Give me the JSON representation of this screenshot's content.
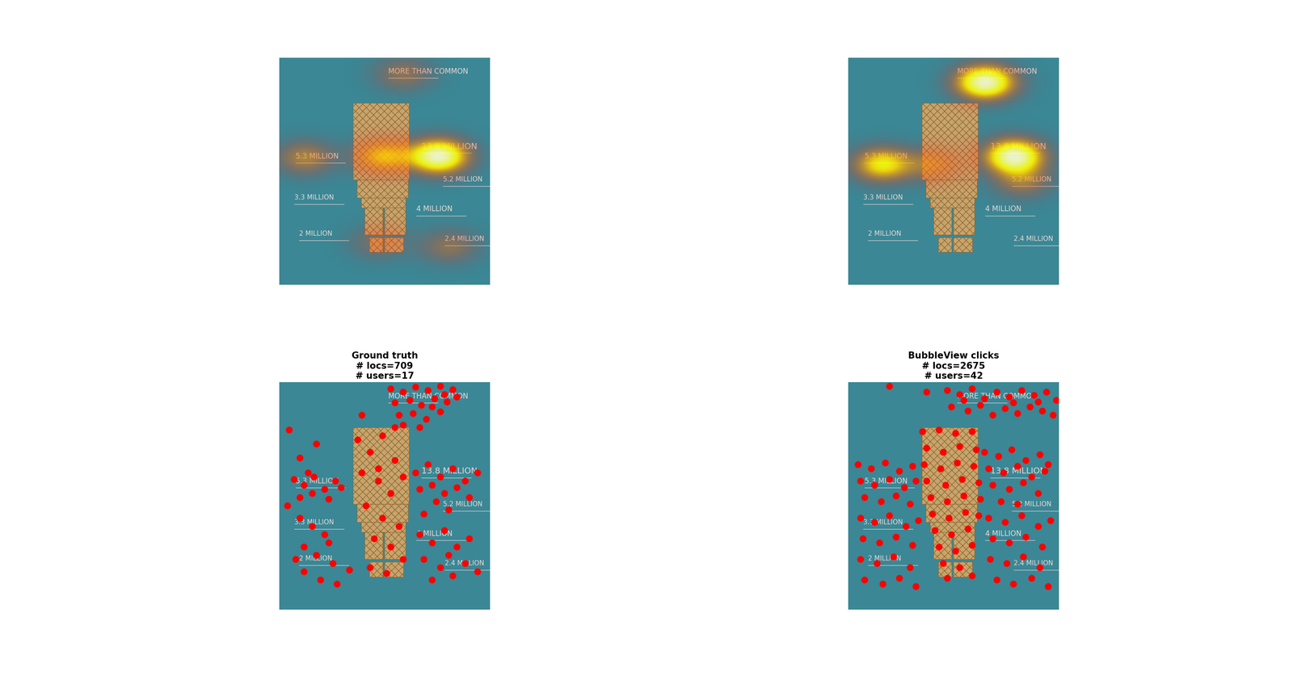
{
  "chart_data": [
    {
      "type": "heatmap",
      "xlim": [
        0,
        255
      ],
      "ylim": [
        276,
        0
      ],
      "hotspots": [
        {
          "x": 193,
          "y": 120,
          "intensity": 1.0
        },
        {
          "x": 126,
          "y": 120,
          "intensity": 0.5
        },
        {
          "x": 31,
          "y": 122,
          "intensity": 0.35
        },
        {
          "x": 150,
          "y": 20,
          "intensity": 0.25
        },
        {
          "x": 206,
          "y": 230,
          "intensity": 0.25
        },
        {
          "x": 121,
          "y": 225,
          "intensity": 0.2
        }
      ]
    },
    {
      "type": "heatmap",
      "xlim": [
        0,
        255
      ],
      "ylim": [
        276,
        0
      ],
      "hotspots": [
        {
          "x": 166,
          "y": 30,
          "intensity": 1.0
        },
        {
          "x": 201,
          "y": 120,
          "intensity": 1.0
        },
        {
          "x": 41,
          "y": 130,
          "intensity": 0.65
        },
        {
          "x": 101,
          "y": 130,
          "intensity": 0.3
        },
        {
          "x": 211,
          "y": 150,
          "intensity": 0.3
        }
      ]
    },
    {
      "type": "scatter",
      "title": [
        "Ground truth",
        "# locs=709",
        "# users=17"
      ],
      "color": "red",
      "xlim": [
        0,
        255
      ],
      "ylim": [
        276,
        0
      ],
      "x": [
        135,
        150,
        165,
        180,
        195,
        210,
        140,
        158,
        172,
        188,
        203,
        145,
        162,
        178,
        195,
        150,
        170,
        200,
        185,
        215,
        12,
        25,
        45,
        10,
        100,
        18,
        30,
        42,
        55,
        68,
        25,
        40,
        60,
        75,
        35,
        95,
        110,
        125,
        140,
        100,
        120,
        135,
        150,
        105,
        125,
        145,
        115,
        135,
        150,
        110,
        130,
        120,
        140,
        165,
        180,
        195,
        210,
        225,
        240,
        170,
        185,
        200,
        215,
        230,
        190,
        175,
        205,
        25,
        40,
        55,
        30,
        45,
        65,
        30,
        50,
        70,
        85,
        20,
        60,
        170,
        185,
        200,
        215,
        230,
        175,
        195,
        210,
        225,
        240,
        185,
        205
      ],
      "y": [
        8,
        12,
        6,
        10,
        5,
        9,
        25,
        22,
        28,
        20,
        24,
        40,
        38,
        45,
        36,
        52,
        55,
        15,
        30,
        18,
        58,
        92,
        75,
        150,
        40,
        118,
        125,
        115,
        130,
        120,
        140,
        135,
        142,
        128,
        110,
        70,
        85,
        65,
        95,
        110,
        120,
        135,
        115,
        150,
        165,
        175,
        190,
        200,
        215,
        225,
        232,
        105,
        55,
        110,
        100,
        115,
        105,
        120,
        110,
        130,
        125,
        135,
        128,
        140,
        145,
        160,
        155,
        165,
        175,
        185,
        200,
        210,
        220,
        230,
        240,
        245,
        228,
        215,
        195,
        185,
        195,
        180,
        200,
        190,
        215,
        225,
        235,
        220,
        230,
        240,
        210
      ]
    },
    {
      "type": "scatter",
      "title": [
        "BubbleView clicks",
        "# locs=2675",
        "# users=42"
      ],
      "color": "red",
      "xlim": [
        0,
        255
      ],
      "ylim": [
        276,
        0
      ],
      "x": [
        120,
        135,
        150,
        165,
        180,
        195,
        210,
        225,
        240,
        252,
        125,
        145,
        160,
        175,
        190,
        205,
        220,
        235,
        248,
        140,
        200,
        230,
        50,
        95,
        90,
        110,
        130,
        150,
        95,
        115,
        135,
        155,
        92,
        112,
        132,
        152,
        95,
        118,
        138,
        158,
        100,
        120,
        140,
        160,
        102,
        122,
        142,
        158,
        105,
        125,
        145,
        110,
        130,
        150,
        115,
        135,
        150,
        120,
        12,
        28,
        45,
        62,
        78,
        15,
        32,
        50,
        68,
        82,
        20,
        40,
        58,
        75,
        165,
        182,
        198,
        215,
        232,
        242,
        170,
        188,
        205,
        222,
        238,
        175,
        195,
        212,
        230,
        185,
        205,
        15,
        32,
        50,
        70,
        85,
        18,
        38,
        58,
        78,
        15,
        35,
        55,
        75,
        20,
        42,
        62,
        82,
        170,
        190,
        210,
        230,
        245,
        175,
        195,
        215,
        235,
        172,
        192,
        212,
        232,
        180,
        200,
        222,
        242
      ],
      "y": [
        10,
        15,
        8,
        20,
        12,
        18,
        10,
        16,
        12,
        22,
        30,
        35,
        28,
        40,
        32,
        38,
        30,
        35,
        40,
        22,
        25,
        24,
        5,
        12,
        60,
        58,
        62,
        60,
        80,
        85,
        78,
        82,
        100,
        105,
        98,
        102,
        120,
        125,
        118,
        122,
        140,
        145,
        138,
        142,
        160,
        165,
        158,
        162,
        180,
        185,
        178,
        200,
        205,
        198,
        220,
        225,
        235,
        238,
        100,
        105,
        98,
        108,
        102,
        120,
        125,
        118,
        128,
        120,
        140,
        145,
        138,
        148,
        85,
        90,
        82,
        95,
        88,
        100,
        105,
        110,
        102,
        115,
        108,
        125,
        130,
        122,
        135,
        145,
        148,
        165,
        170,
        162,
        175,
        168,
        190,
        195,
        188,
        198,
        215,
        220,
        212,
        225,
        240,
        245,
        238,
        248,
        165,
        170,
        162,
        175,
        168,
        190,
        195,
        188,
        200,
        215,
        220,
        212,
        225,
        240,
        245,
        238,
        248
      ]
    }
  ],
  "image_texts": [
    "MORE THAN COMMON",
    "5.3 MILLION",
    "13.8 MILLION",
    "5.2 MILLION",
    "3.3 MILLION",
    "4 MILLION",
    "2 MILLION",
    "2.4 MILLION"
  ]
}
